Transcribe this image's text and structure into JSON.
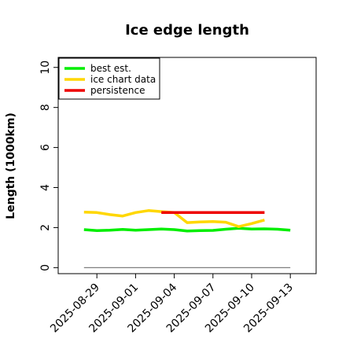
{
  "chart_data": {
    "type": "line",
    "title": "Ice edge length",
    "xlabel": "",
    "ylabel": "Length (1000km)",
    "ylim": [
      -0.3,
      10.5
    ],
    "xlim": [
      "2025-08-26",
      "2025-09-15"
    ],
    "yticks": [
      0,
      2,
      4,
      6,
      8,
      10
    ],
    "xticks": [
      "2025-08-29",
      "2025-09-01",
      "2025-09-04",
      "2025-09-07",
      "2025-09-10",
      "2025-09-13"
    ],
    "grid": false,
    "legend_position": "top-left",
    "reference_line": {
      "y": 0,
      "x_start": "2025-08-28",
      "x_end": "2025-09-13",
      "color": "#808080"
    },
    "series": [
      {
        "name": "best est.",
        "color": "#00ee00",
        "points": [
          [
            "2025-08-28",
            1.9
          ],
          [
            "2025-08-29",
            1.85
          ],
          [
            "2025-08-30",
            1.87
          ],
          [
            "2025-08-31",
            1.91
          ],
          [
            "2025-09-01",
            1.87
          ],
          [
            "2025-09-02",
            1.9
          ],
          [
            "2025-09-03",
            1.93
          ],
          [
            "2025-09-04",
            1.9
          ],
          [
            "2025-09-05",
            1.83
          ],
          [
            "2025-09-06",
            1.85
          ],
          [
            "2025-09-07",
            1.86
          ],
          [
            "2025-09-08",
            1.92
          ],
          [
            "2025-09-09",
            1.97
          ],
          [
            "2025-09-10",
            1.93
          ],
          [
            "2025-09-11",
            1.94
          ],
          [
            "2025-09-12",
            1.92
          ],
          [
            "2025-09-13",
            1.87
          ]
        ]
      },
      {
        "name": "ice chart data",
        "color": "#ffd700",
        "points": [
          [
            "2025-08-28",
            2.77
          ],
          [
            "2025-08-29",
            2.75
          ],
          [
            "2025-08-30",
            2.65
          ],
          [
            "2025-08-31",
            2.58
          ],
          [
            "2025-09-01",
            2.75
          ],
          [
            "2025-09-02",
            2.85
          ],
          [
            "2025-09-03",
            2.8
          ],
          [
            "2025-09-04",
            2.75
          ],
          [
            "2025-09-05",
            2.25
          ],
          [
            "2025-09-06",
            2.28
          ],
          [
            "2025-09-07",
            2.3
          ],
          [
            "2025-09-08",
            2.27
          ],
          [
            "2025-09-09",
            2.05
          ],
          [
            "2025-09-10",
            2.2
          ],
          [
            "2025-09-11",
            2.38
          ]
        ]
      },
      {
        "name": "persistence",
        "color": "#ee0000",
        "points": [
          [
            "2025-09-03",
            2.75
          ],
          [
            "2025-09-11",
            2.75
          ]
        ]
      }
    ]
  }
}
